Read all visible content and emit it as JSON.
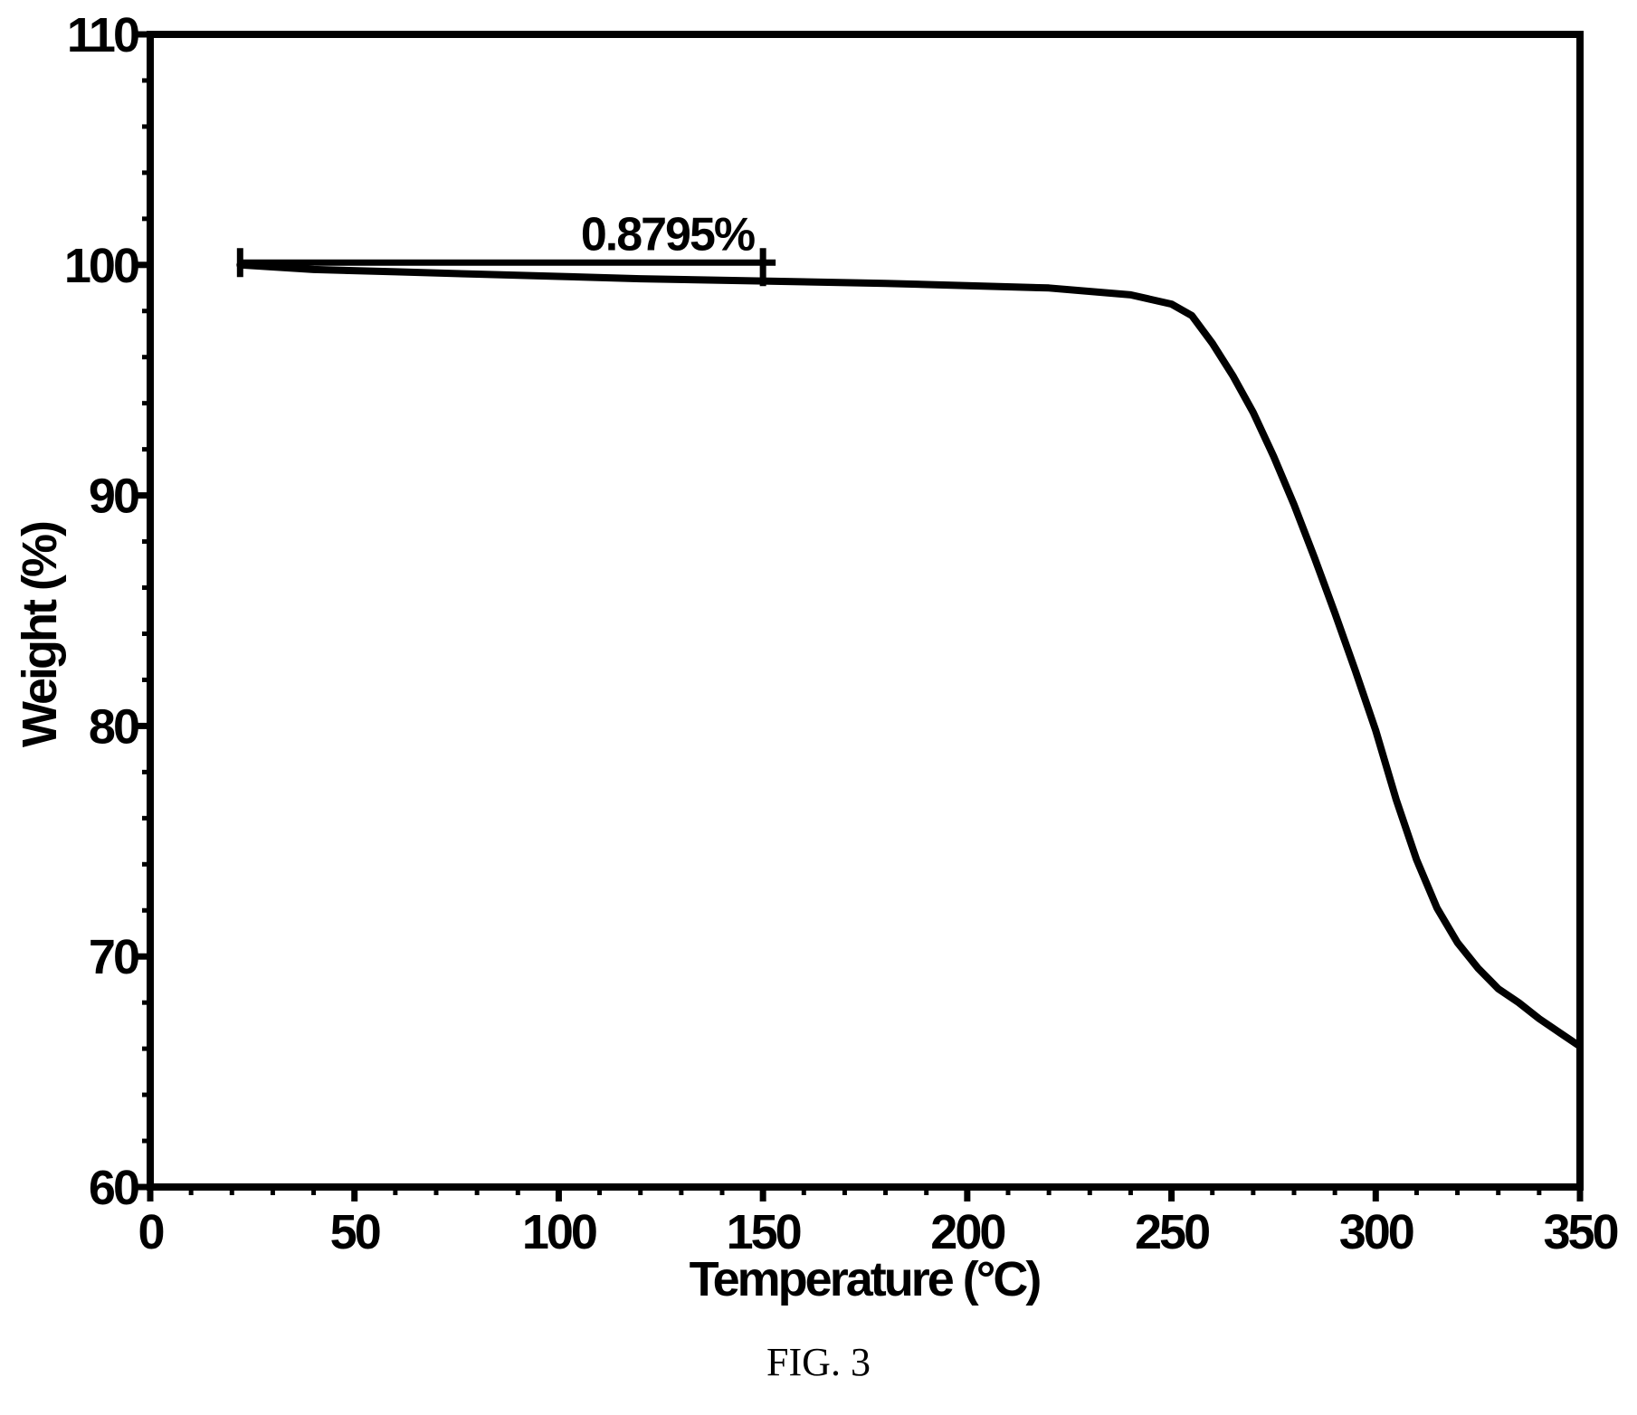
{
  "chart_data": {
    "type": "line",
    "xlabel": "Temperature (°C)",
    "ylabel": "Weight (%)",
    "xlim": [
      0,
      350
    ],
    "ylim": [
      60,
      110
    ],
    "xticks": [
      "0",
      "50",
      "100",
      "150",
      "200",
      "250",
      "300",
      "350"
    ],
    "yticks": [
      "60",
      "70",
      "80",
      "90",
      "100",
      "110"
    ],
    "grid": false,
    "series": [
      {
        "x": [
          22,
          40,
          60,
          80,
          100,
          120,
          150,
          180,
          200,
          220,
          240,
          250,
          255,
          260,
          265,
          270,
          275,
          280,
          285,
          290,
          295,
          300,
          305,
          310,
          315,
          320,
          325,
          330,
          335,
          340,
          345,
          350
        ],
        "y": [
          100.0,
          99.8,
          99.7,
          99.6,
          99.5,
          99.4,
          99.3,
          99.2,
          99.1,
          99.0,
          98.7,
          98.3,
          97.8,
          96.6,
          95.2,
          93.6,
          91.7,
          89.6,
          87.3,
          84.9,
          82.4,
          79.8,
          76.8,
          74.2,
          72.1,
          70.6,
          69.5,
          68.6,
          68.0,
          67.3,
          66.7,
          66.1
        ],
        "color": "#000000"
      }
    ],
    "annotation": {
      "label": "0.8795%",
      "x_start": 22,
      "x_end": 150,
      "y": 100.1
    }
  },
  "caption": "FIG. 3"
}
